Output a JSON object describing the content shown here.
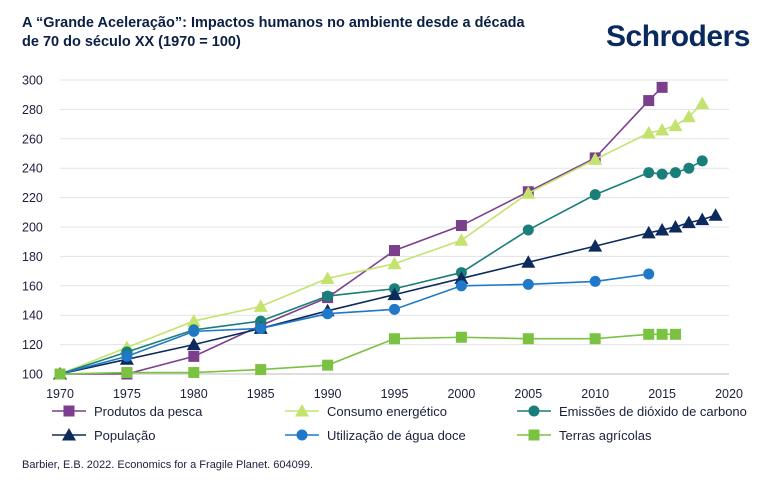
{
  "title": "A “Grande Aceleração”: Impactos humanos no ambiente desde a década de 70 do século XX (1970 = 100)",
  "logo_text": "Schroders",
  "source": "Barbier, E.B. 2022. Economics for a Fragile Planet. 604099.",
  "chart_data": {
    "type": "line",
    "title": "A “Grande Aceleração”: Impactos humanos no ambiente desde a década de 70 do século XX (1970 = 100)",
    "xlim": [
      1970,
      2020
    ],
    "ylim": [
      100,
      300
    ],
    "x_ticks": [
      1970,
      1975,
      1980,
      1985,
      1990,
      1995,
      2000,
      2005,
      2010,
      2015,
      2020
    ],
    "y_ticks": [
      100,
      120,
      140,
      160,
      180,
      200,
      220,
      240,
      260,
      280,
      300
    ],
    "grid": "horizontal",
    "legend_position": "bottom",
    "series": [
      {
        "name": "Produtos da pesca",
        "marker": "square",
        "color": "#7b3f8c",
        "x": [
          1970,
          1975,
          1980,
          1985,
          1990,
          1995,
          2000,
          2005,
          2010,
          2014,
          2015
        ],
        "y": [
          100,
          100,
          112,
          133,
          152,
          184,
          201,
          224,
          247,
          286,
          295
        ]
      },
      {
        "name": "Consumo energético",
        "marker": "triangle",
        "color": "#c4e36e",
        "x": [
          1970,
          1975,
          1980,
          1985,
          1990,
          1995,
          2000,
          2005,
          2010,
          2014,
          2015,
          2016,
          2017,
          2018
        ],
        "y": [
          100,
          118,
          136,
          146,
          165,
          175,
          191,
          223,
          246,
          264,
          266,
          269,
          275,
          284
        ]
      },
      {
        "name": "Emissões de dióxido de carbono",
        "marker": "circle",
        "color": "#1a7f7a",
        "x": [
          1970,
          1975,
          1980,
          1985,
          1990,
          1995,
          2000,
          2005,
          2010,
          2014,
          2015,
          2016,
          2017,
          2018
        ],
        "y": [
          100,
          115,
          130,
          136,
          153,
          158,
          169,
          198,
          222,
          237,
          236,
          237,
          240,
          245
        ]
      },
      {
        "name": "População",
        "marker": "triangle",
        "color": "#0d2a5c",
        "x": [
          1970,
          1975,
          1980,
          1985,
          1990,
          1995,
          2000,
          2005,
          2010,
          2014,
          2015,
          2016,
          2017,
          2018,
          2019
        ],
        "y": [
          100,
          110,
          120,
          131,
          143,
          154,
          165,
          176,
          187,
          196,
          198,
          200,
          203,
          205,
          208
        ]
      },
      {
        "name": "Utilização de água doce",
        "marker": "circle",
        "color": "#1f78c8",
        "x": [
          1970,
          1975,
          1980,
          1985,
          1990,
          1995,
          2000,
          2005,
          2010,
          2014
        ],
        "y": [
          100,
          112,
          129,
          131,
          141,
          144,
          160,
          161,
          163,
          168
        ]
      },
      {
        "name": "Terras agrícolas",
        "marker": "square",
        "color": "#7cc242",
        "x": [
          1970,
          1975,
          1980,
          1985,
          1990,
          1995,
          2000,
          2005,
          2010,
          2014,
          2015,
          2016
        ],
        "y": [
          100,
          101,
          101,
          103,
          106,
          124,
          125,
          124,
          124,
          127,
          127,
          127
        ]
      }
    ]
  }
}
